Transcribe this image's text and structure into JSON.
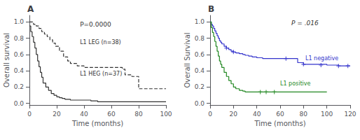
{
  "chart_data": [
    {
      "type": "line",
      "title": "A",
      "xlabel": "Time (months)",
      "ylabel": "Overall survival",
      "xlim": [
        0,
        100
      ],
      "ylim": [
        -0.02,
        1.08
      ],
      "xticks": [
        0,
        20,
        40,
        60,
        80,
        100
      ],
      "yticks": [
        {
          "value": 0.0,
          "label": "0.0"
        },
        0.2,
        0.4,
        0.6,
        0.8,
        {
          "value": 1.0,
          "label": "1.0"
        }
      ],
      "grid": false,
      "annotations": [
        "P=0.0000"
      ],
      "series": [
        {
          "name": "L1 HEG (n=37)",
          "color": "#333333",
          "line_style": "solid",
          "x": [
            0,
            1,
            2,
            3,
            4,
            5,
            6,
            7,
            8,
            9,
            10,
            12,
            14,
            16,
            18,
            20,
            22,
            24,
            26,
            28,
            30,
            32,
            35,
            38,
            40,
            45,
            50,
            55,
            60,
            100
          ],
          "values": [
            0.95,
            0.88,
            0.82,
            0.75,
            0.68,
            0.6,
            0.52,
            0.45,
            0.38,
            0.32,
            0.25,
            0.2,
            0.16,
            0.12,
            0.1,
            0.08,
            0.07,
            0.06,
            0.05,
            0.05,
            0.04,
            0.04,
            0.04,
            0.04,
            0.04,
            0.03,
            0.02,
            0.02,
            0.02,
            0.02
          ]
        },
        {
          "name": "L1 LEG (n=38)",
          "color": "#333333",
          "line_style": "dashed",
          "x": [
            0,
            2,
            3,
            5,
            7,
            9,
            11,
            13,
            15,
            17,
            19,
            22,
            25,
            28,
            30,
            35,
            40,
            45,
            50,
            55,
            60,
            65,
            68,
            70,
            75,
            80,
            85,
            100
          ],
          "values": [
            1.0,
            1.0,
            0.97,
            0.95,
            0.92,
            0.88,
            0.85,
            0.82,
            0.78,
            0.74,
            0.7,
            0.64,
            0.57,
            0.52,
            0.49,
            0.46,
            0.44,
            0.44,
            0.44,
            0.44,
            0.44,
            0.44,
            0.42,
            0.35,
            0.33,
            0.18,
            0.18,
            0.18
          ]
        }
      ]
    },
    {
      "type": "line",
      "title": "B",
      "xlabel": "Time (months)",
      "ylabel": "Overall Survival",
      "xlim": [
        0,
        120
      ],
      "ylim": [
        -0.02,
        1.08
      ],
      "xticks": [
        0,
        20,
        40,
        60,
        80,
        100,
        120
      ],
      "yticks": [
        {
          "value": 0.0,
          "label": "0.0"
        },
        0.2,
        0.4,
        0.6,
        0.8,
        {
          "value": 1.0,
          "label": "1.0"
        }
      ],
      "grid": false,
      "annotations": [
        "P = .016"
      ],
      "series": [
        {
          "name": "L1 negative",
          "color": "#3333cc",
          "line_style": "solid",
          "x": [
            0,
            1,
            2,
            3,
            4,
            5,
            6,
            7,
            8,
            9,
            10,
            12,
            14,
            16,
            18,
            20,
            22,
            25,
            28,
            30,
            33,
            36,
            40,
            45,
            50,
            55,
            60,
            65,
            70,
            75,
            80,
            100,
            110,
            120
          ],
          "values": [
            1.0,
            0.97,
            0.95,
            0.92,
            0.89,
            0.86,
            0.83,
            0.8,
            0.77,
            0.75,
            0.73,
            0.7,
            0.68,
            0.66,
            0.64,
            0.63,
            0.62,
            0.61,
            0.6,
            0.59,
            0.58,
            0.57,
            0.56,
            0.55,
            0.55,
            0.55,
            0.55,
            0.55,
            0.55,
            0.5,
            0.48,
            0.47,
            0.46,
            0.46
          ],
          "censored_x": [
            14,
            20,
            65,
            80,
            95,
            110,
            118
          ],
          "censored_y": [
            0.68,
            0.63,
            0.55,
            0.48,
            0.47,
            0.46,
            0.46
          ]
        },
        {
          "name": "L1 positive",
          "color": "#228822",
          "line_style": "solid",
          "x": [
            0,
            1,
            2,
            3,
            4,
            5,
            6,
            7,
            8,
            9,
            10,
            12,
            14,
            16,
            18,
            20,
            22,
            25,
            28,
            30,
            33,
            36,
            40,
            43,
            45,
            50,
            55,
            60,
            100
          ],
          "values": [
            1.0,
            0.93,
            0.87,
            0.82,
            0.76,
            0.7,
            0.64,
            0.58,
            0.52,
            0.48,
            0.44,
            0.38,
            0.33,
            0.28,
            0.24,
            0.2,
            0.18,
            0.16,
            0.15,
            0.14,
            0.14,
            0.14,
            0.14,
            0.14,
            0.14,
            0.14,
            0.14,
            0.14,
            0.14
          ],
          "censored_x": [
            43,
            48,
            55
          ],
          "censored_y": [
            0.14,
            0.14,
            0.14
          ]
        }
      ]
    }
  ]
}
